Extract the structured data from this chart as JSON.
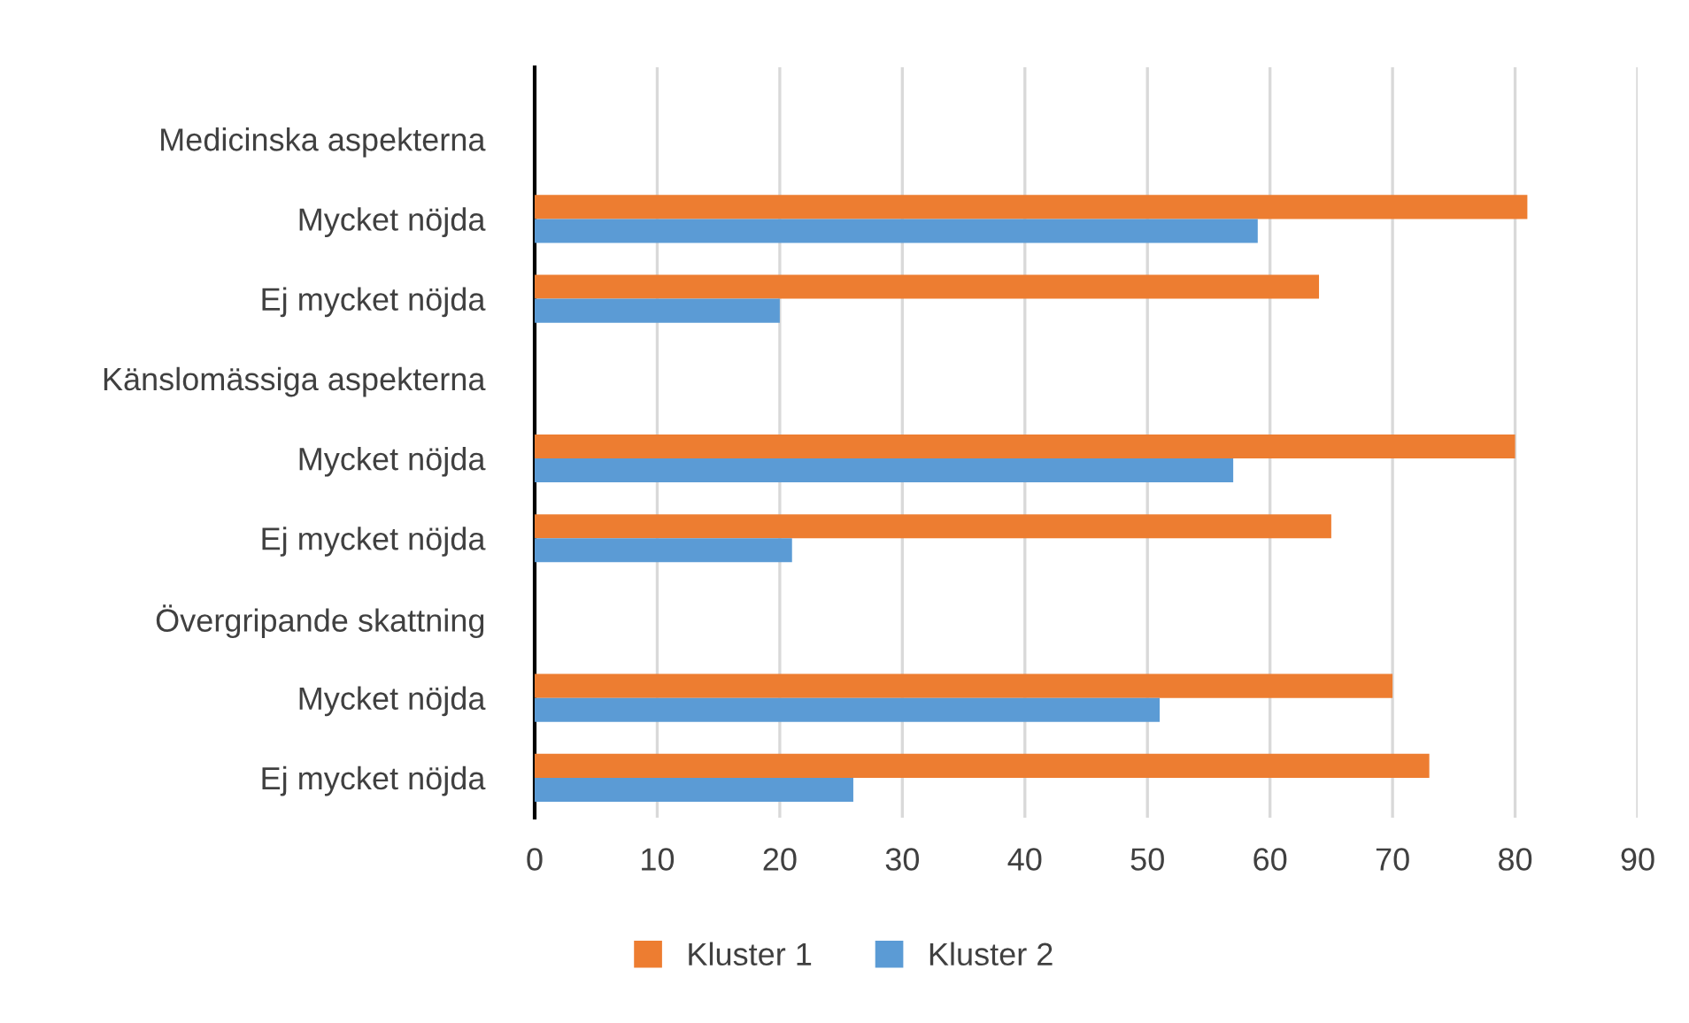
{
  "chart_data": {
    "type": "bar",
    "orientation": "horizontal",
    "categories": [
      "Medicinska aspekterna",
      "Mycket nöjda",
      "Ej mycket nöjda",
      "Känslomässiga aspekterna",
      "Mycket nöjda",
      "Ej mycket nöjda",
      "Övergripande skattning",
      "Mycket nöjda",
      "Ej mycket nöjda"
    ],
    "series": [
      {
        "name": "Kluster 1",
        "color": "#ed7d31",
        "values": [
          null,
          81,
          64,
          null,
          80,
          65,
          null,
          70,
          73
        ]
      },
      {
        "name": "Kluster 2",
        "color": "#5b9bd5",
        "values": [
          null,
          59,
          20,
          null,
          57,
          21,
          null,
          51,
          26
        ]
      }
    ],
    "xlim": [
      0,
      90
    ],
    "xticks": [
      0,
      10,
      20,
      30,
      40,
      50,
      60,
      70,
      80,
      90
    ],
    "grid": "x",
    "legend": "bottom"
  }
}
